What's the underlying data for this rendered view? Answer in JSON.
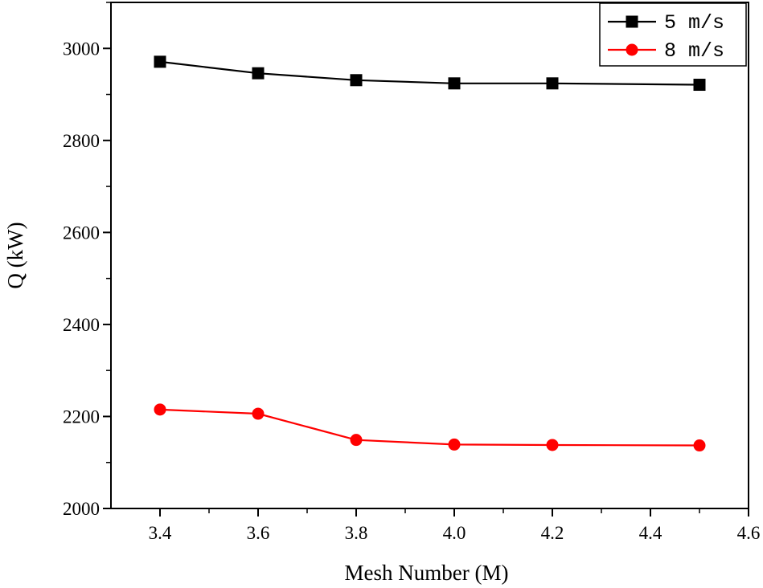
{
  "chart_data": {
    "type": "line",
    "x": [
      3.4,
      3.6,
      3.8,
      4.0,
      4.2,
      4.5
    ],
    "series": [
      {
        "name": "5 m/s",
        "values": [
          2971,
          2946,
          2931,
          2924,
          2924,
          2921
        ],
        "color": "#000000",
        "marker": "square"
      },
      {
        "name": "8 m/s",
        "values": [
          2215,
          2206,
          2149,
          2139,
          2138,
          2137
        ],
        "color": "#ff0000",
        "marker": "circle"
      }
    ],
    "xlabel": "Mesh Number (M)",
    "ylabel": "Q (kW)",
    "xlim": [
      3.3,
      4.6
    ],
    "ylim": [
      2000,
      3100
    ],
    "xticks": [
      3.4,
      3.6,
      3.8,
      4.0,
      4.2,
      4.4,
      4.6
    ],
    "xtick_labels": [
      "3.4",
      "3.6",
      "3.8",
      "4.0",
      "4.2",
      "4.4",
      "4.6"
    ],
    "yticks": [
      2000,
      2200,
      2400,
      2600,
      2800,
      3000
    ],
    "ytick_labels": [
      "2000",
      "2200",
      "2400",
      "2600",
      "2800",
      "3000"
    ],
    "legend_position": "top-right",
    "grid": false
  }
}
